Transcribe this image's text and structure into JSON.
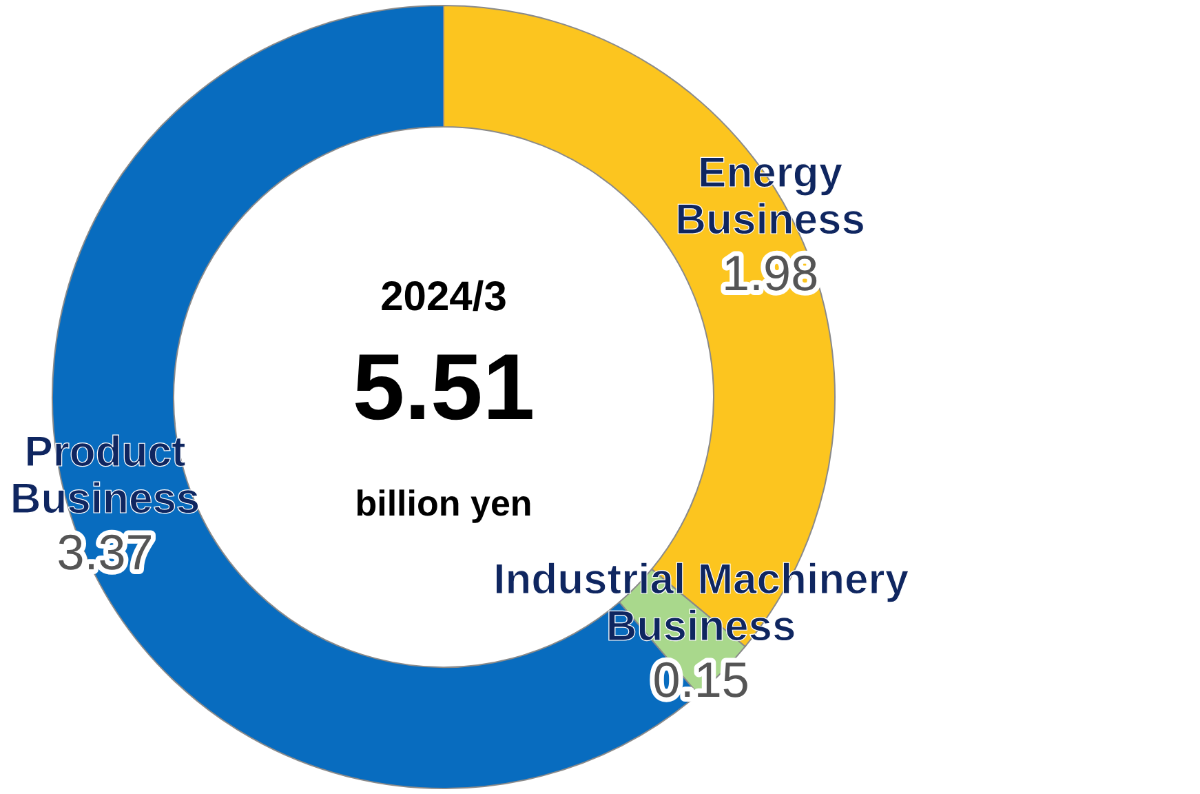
{
  "chart_data": {
    "type": "donut",
    "categories": [
      "Energy Business",
      "Industrial Machinery Business",
      "Product Business"
    ],
    "values": [
      1.98,
      0.15,
      3.37
    ],
    "colors": [
      "#fcc51f",
      "#a9d88c",
      "#086cbf"
    ],
    "data_labels": true,
    "legend": false,
    "annotations": [
      "2024/3",
      "5.51",
      "billion yen"
    ]
  }
}
